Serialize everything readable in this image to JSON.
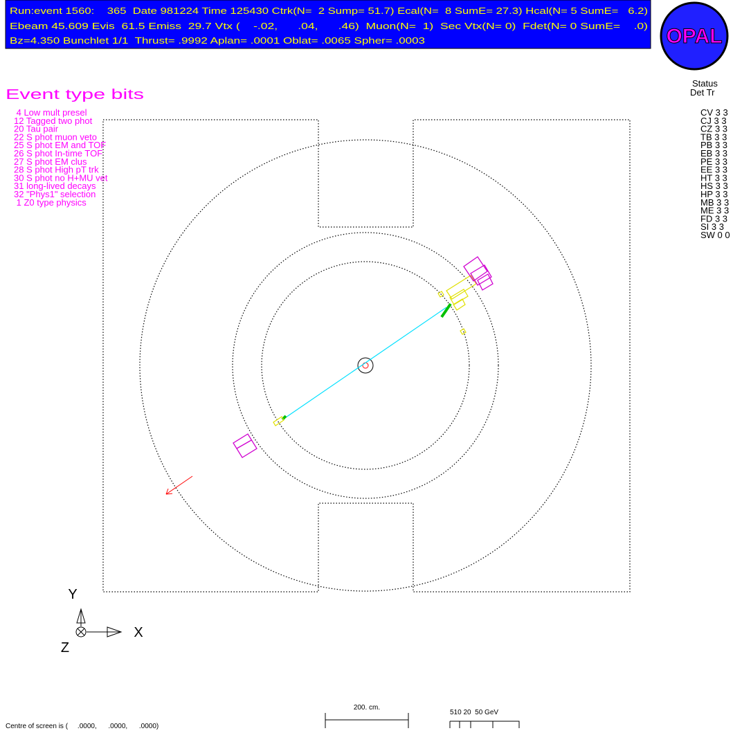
{
  "header": {
    "lines": [
      "Run:event 1560:    365  Date 981224 Time 125430 Ctrk(N=  2 Sump= 51.7) Ecal(N=  8 SumE= 27.3) Hcal(N= 5 SumE=   6.2)",
      "Ebeam 45.609 Evis  61.5 Emiss  29.7 Vtx (    -.02,      .04,      .46)  Muon(N=  1)  Sec Vtx(N= 0)  Fdet(N= 0 SumE=    .0)",
      "Bz=4.350 Bunchlet 1/1  Thrust= .9992 Aplan= .0001 Oblat= .0065 Spher= .0003"
    ],
    "logo": "OPAL"
  },
  "event_type_bits": {
    "title": "Event type bits",
    "items": [
      " 4 Low mult presel",
      "12 Tagged two phot",
      "20 Tau pair",
      "22 S phot muon veto",
      "25 S phot EM and TOF",
      "26 S phot In-time TOF",
      "27 S phot EM clus",
      "28 S phot High pT trk",
      "30 S phot no H+MU vet",
      "31 long-lived decays",
      "32 \"Phys1\" selection",
      " 1 Z0 type physics"
    ]
  },
  "status": {
    "title": "Status",
    "columns": "Det Tr",
    "rows": [
      "CV 3 3",
      "CJ 3 3",
      "CZ 3 3",
      "TB 3 3",
      "PB 3 3",
      "EB 3 3",
      "PE 3 3",
      "EE 3 3",
      "HT 3 3",
      "HS 3 3",
      "HP 3 3",
      "MB 3 3",
      "ME 3 3",
      "FD 3 3",
      "SI 3 3",
      "SW 0 0"
    ]
  },
  "axes": {
    "y": "Y",
    "x": "X",
    "z": "Z"
  },
  "footer": {
    "centre": "Centre of screen is (     .0000,      .0000,      .0000)",
    "length_scale": "200. cm.",
    "energy_scale": "510 20  50 GeV"
  }
}
